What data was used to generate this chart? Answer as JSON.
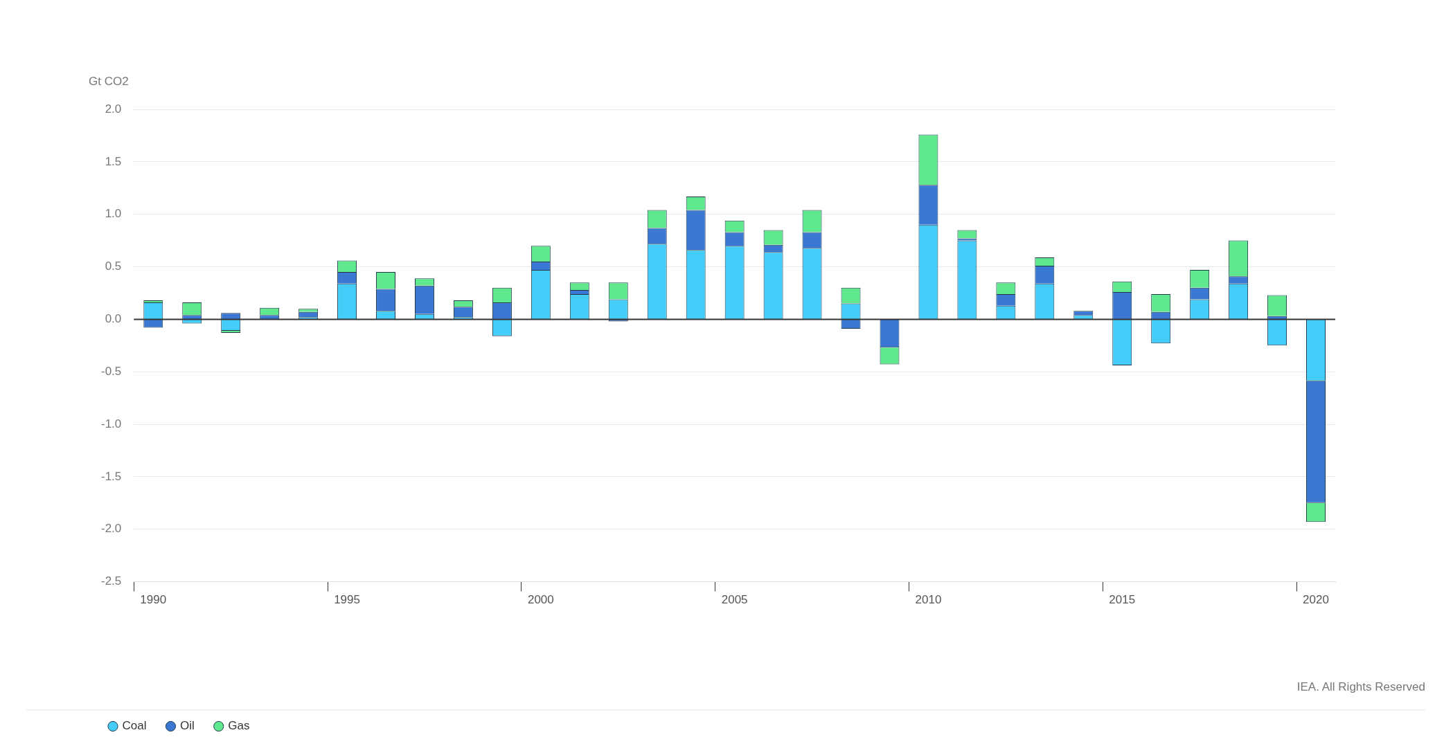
{
  "chart_data": {
    "type": "bar",
    "stacked": true,
    "ylabel": "Gt CO2",
    "categories": [
      "1990",
      null,
      null,
      null,
      null,
      "1995",
      null,
      null,
      null,
      null,
      "2000",
      null,
      null,
      null,
      null,
      "2005",
      null,
      null,
      null,
      null,
      "2010",
      null,
      null,
      null,
      null,
      "2015",
      null,
      null,
      null,
      null,
      "2020"
    ],
    "series": [
      {
        "name": "Coal",
        "color": "#45cdf9",
        "values": [
          0.16,
          -0.04,
          -0.11,
          null,
          0.02,
          0.34,
          0.08,
          0.05,
          0.02,
          -0.16,
          0.47,
          0.24,
          0.19,
          0.72,
          0.66,
          0.7,
          0.64,
          0.68,
          0.15,
          0,
          0.9,
          0.75,
          0.13,
          0.34,
          0.04,
          -0.44,
          -0.23,
          0.19,
          0.34,
          -0.25,
          -0.59
        ]
      },
      {
        "name": "Oil",
        "color": "#3a78d4",
        "values": [
          -0.08,
          0.04,
          0.06,
          0.04,
          0.05,
          0.11,
          0.21,
          0.27,
          0.1,
          0.16,
          0.08,
          0.04,
          -0.02,
          0.15,
          0.38,
          0.13,
          0.07,
          0.15,
          -0.09,
          -0.27,
          0.38,
          0.02,
          0.11,
          0.17,
          0.04,
          0.26,
          0.07,
          0.11,
          0.07,
          0.03,
          -1.16
        ]
      },
      {
        "name": "Gas",
        "color": "#5fe88e",
        "values": [
          0.02,
          0.12,
          -0.02,
          0.07,
          0.03,
          0.11,
          0.16,
          0.07,
          0.06,
          0.14,
          0.15,
          0.07,
          0.16,
          0.17,
          0.13,
          0.11,
          0.14,
          0.21,
          0.15,
          -0.16,
          0.48,
          0.08,
          0.11,
          0.08,
          0,
          0.1,
          0.17,
          0.17,
          0.34,
          0.2,
          -0.18
        ]
      }
    ],
    "ylim": [
      -2.5,
      2.0
    ],
    "yticks": [
      {
        "value": -2.5,
        "label": "-2.5"
      },
      {
        "value": -2,
        "label": "-2.0"
      },
      {
        "value": -1.5,
        "label": "-1.5"
      },
      {
        "value": -1,
        "label": "-1.0"
      },
      {
        "value": -0.5,
        "label": "-0.5"
      },
      {
        "value": 0,
        "label": "0.0"
      },
      {
        "value": 0.5,
        "label": "0.5"
      },
      {
        "value": 1,
        "label": "1.0"
      },
      {
        "value": 1.5,
        "label": "1.5"
      },
      {
        "value": 2,
        "label": "2.0"
      }
    ],
    "grid": "y",
    "legend": "bottom left",
    "annotations": [
      "IEA. All Rights Reserved"
    ]
  }
}
